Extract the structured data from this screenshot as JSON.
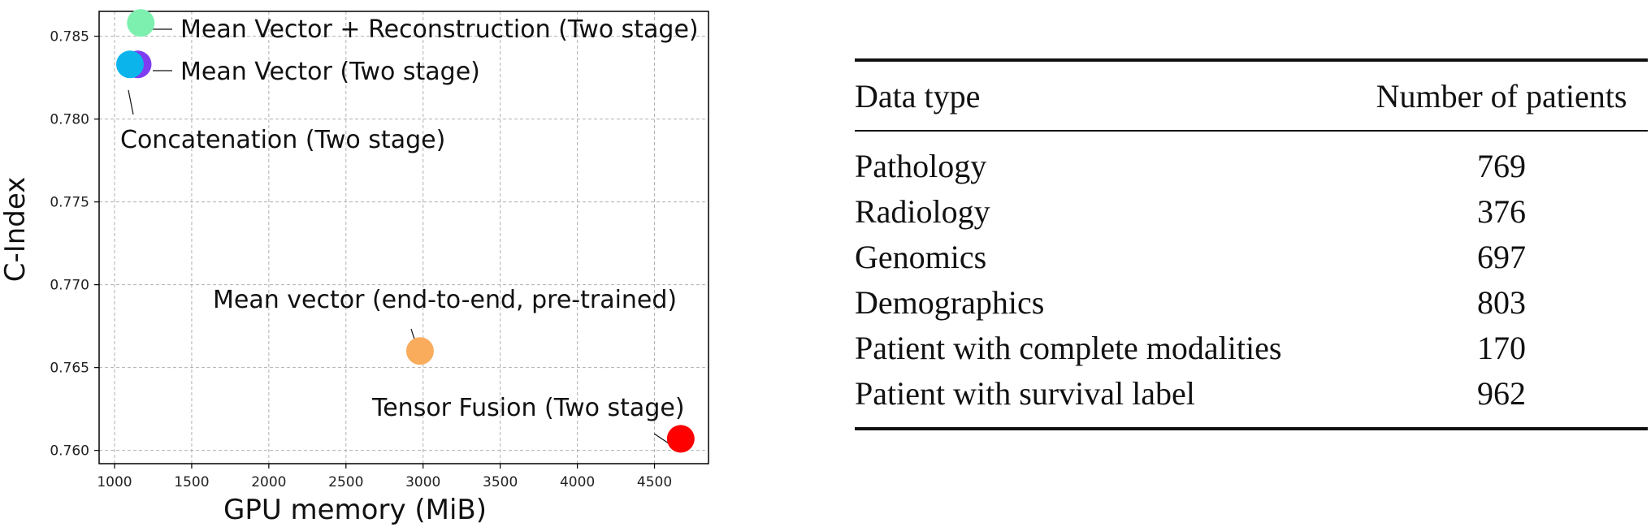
{
  "chart_data": {
    "type": "scatter",
    "xlabel": "GPU memory (MiB)",
    "ylabel": "C-Index",
    "xlim": [
      900,
      4850
    ],
    "ylim": [
      0.7592,
      0.7865
    ],
    "xticks": [
      1000,
      1500,
      2000,
      2500,
      3000,
      3500,
      4000,
      4500
    ],
    "xtick_labels": [
      "1000",
      "1500",
      "2000",
      "2500",
      "3000",
      "3500",
      "4000",
      "4500"
    ],
    "yticks": [
      0.76,
      0.765,
      0.77,
      0.775,
      0.78,
      0.785
    ],
    "ytick_labels": [
      "0.760",
      "0.765",
      "0.770",
      "0.775",
      "0.780",
      "0.785"
    ],
    "grid": true,
    "points": [
      {
        "label": "Mean Vector + Reconstruction (Two stage)",
        "x": 1170,
        "y": 0.7858,
        "color": "#7df0b0"
      },
      {
        "label": "Mean Vector (Two stage)",
        "x": 1150,
        "y": 0.7833,
        "color": "#7f3cf0"
      },
      {
        "label": "Concatenation (Two stage)",
        "x": 1100,
        "y": 0.7833,
        "color": "#0cb4ec"
      },
      {
        "label": "Mean vector (end-to-end, pre-trained)",
        "x": 2980,
        "y": 0.766,
        "color": "#f9ac5c"
      },
      {
        "label": "Tensor Fusion (Two stage)",
        "x": 4670,
        "y": 0.7607,
        "color": "#ff0000"
      }
    ]
  },
  "table": {
    "headers": [
      "Data type",
      "Number of patients"
    ],
    "rows": [
      [
        "Pathology",
        "769"
      ],
      [
        "Radiology",
        "376"
      ],
      [
        "Genomics",
        "697"
      ],
      [
        "Demographics",
        "803"
      ],
      [
        "Patient with complete modalities",
        "170"
      ],
      [
        "Patient with survival label",
        "962"
      ]
    ]
  }
}
